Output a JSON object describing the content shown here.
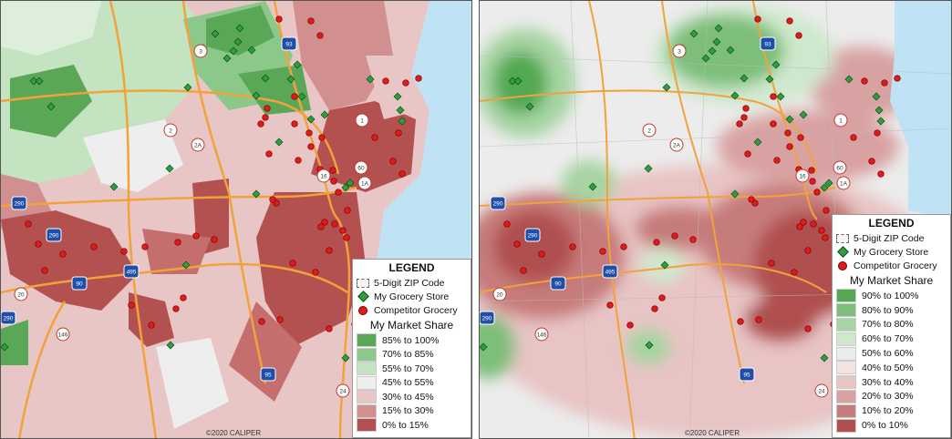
{
  "left_map": {
    "legend": {
      "title": "LEGEND",
      "items": [
        {
          "label": "5-Digit ZIP Code",
          "symbol": "zip-boundary"
        },
        {
          "label": "My Grocery Store",
          "symbol": "green-diamond"
        },
        {
          "label": "Competitor Grocery",
          "symbol": "red-dot"
        }
      ],
      "share_title": "My Market Share",
      "classes": [
        {
          "label": "85% to 100%",
          "color": "#5aa857"
        },
        {
          "label": "70% to 85%",
          "color": "#8cc88a"
        },
        {
          "label": "55% to 70%",
          "color": "#c3e3c1"
        },
        {
          "label": "45% to 55%",
          "color": "#eeeeee"
        },
        {
          "label": "30% to 45%",
          "color": "#e8c6c6"
        },
        {
          "label": "15% to 30%",
          "color": "#d18f8f"
        },
        {
          "label": "0% to 15%",
          "color": "#b35050"
        }
      ]
    },
    "credit": "©2020 CALIPER"
  },
  "right_map": {
    "legend": {
      "title": "LEGEND",
      "items": [
        {
          "label": "5-Digit ZIP Code",
          "symbol": "zip-boundary"
        },
        {
          "label": "My Grocery Store",
          "symbol": "green-diamond"
        },
        {
          "label": "Competitor Grocery",
          "symbol": "red-dot"
        }
      ],
      "share_title": "My Market Share",
      "classes": [
        {
          "label": "90% to 100%",
          "color": "#53a852"
        },
        {
          "label": "80% to 90%",
          "color": "#7dbf79"
        },
        {
          "label": "70% to 80%",
          "color": "#a6d4a2"
        },
        {
          "label": "60% to 70%",
          "color": "#cfe8cd"
        },
        {
          "label": "50% to 60%",
          "color": "#ececec"
        },
        {
          "label": "40% to 50%",
          "color": "#f3e2e2"
        },
        {
          "label": "30% to 40%",
          "color": "#e8c4c4"
        },
        {
          "label": "20% to 30%",
          "color": "#d9a2a2"
        },
        {
          "label": "10% to 20%",
          "color": "#c77c7c"
        },
        {
          "label": "0% to 10%",
          "color": "#b04f4f"
        }
      ]
    },
    "credit": "©2020 CALIPER"
  },
  "route_shields": [
    "93",
    "3",
    "2",
    "2A",
    "1",
    "1A",
    "16",
    "60",
    "290",
    "495",
    "90",
    "20",
    "146",
    "95",
    "24"
  ],
  "colors": {
    "ocean": "#bfe3f5",
    "road": "#f2a23a",
    "store": "#2f9e3f",
    "competitor": "#e01b1b"
  }
}
